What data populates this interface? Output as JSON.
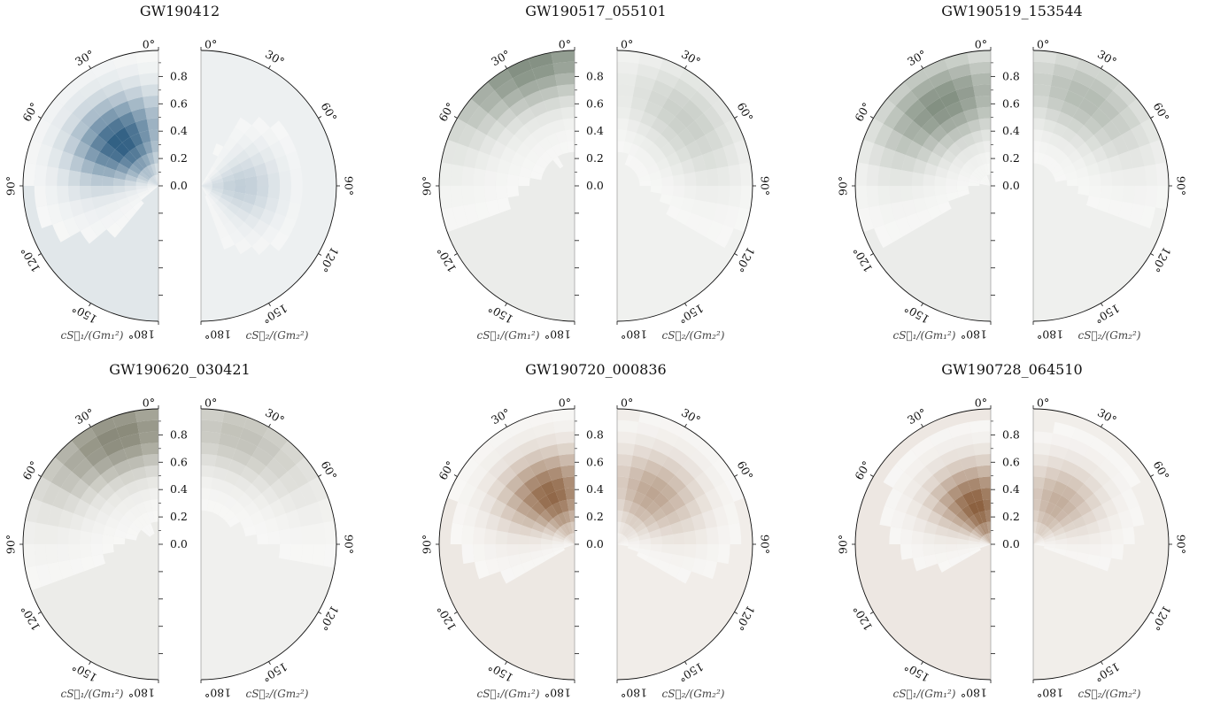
{
  "chart_data": [
    {
      "type": "heatmap",
      "title": "GW190412",
      "cmap_dark": "#2b5b80",
      "angle_ticks": [
        "0°",
        "30°",
        "60°",
        "90°",
        "120°",
        "150°",
        "180°"
      ],
      "radial_ticks": [
        "0.8",
        "0.6",
        "0.4",
        "0.2",
        "0.0"
      ],
      "left_label": "cS⃗₁/(Gm₁²)",
      "right_label": "cS⃗₂/(Gm₂²)",
      "primary_peak": {
        "magnitude": 0.42,
        "tilt_deg": 40
      },
      "secondary_peak": {
        "magnitude": 0.3,
        "tilt_deg": 90
      },
      "primary_strength": 1.0,
      "secondary_strength": 0.28
    },
    {
      "type": "heatmap",
      "title": "GW190517_055101",
      "cmap_dark": "#6b7a6a",
      "angle_ticks": [
        "0°",
        "30°",
        "60°",
        "90°",
        "120°",
        "150°",
        "180°"
      ],
      "radial_ticks": [
        "0.8",
        "0.6",
        "0.4",
        "0.2",
        "0.0"
      ],
      "left_label": "cS⃗₁/(Gm₁²)",
      "right_label": "cS⃗₂/(Gm₂²)",
      "primary_peak": {
        "magnitude": 0.95,
        "tilt_deg": 20
      },
      "secondary_peak": {
        "magnitude": 0.7,
        "tilt_deg": 45
      },
      "primary_strength": 0.85,
      "secondary_strength": 0.35
    },
    {
      "type": "heatmap",
      "title": "GW190519_153544",
      "cmap_dark": "#6b7a6a",
      "angle_ticks": [
        "0°",
        "30°",
        "60°",
        "90°",
        "120°",
        "150°",
        "180°"
      ],
      "radial_ticks": [
        "0.8",
        "0.6",
        "0.4",
        "0.2",
        "0.0"
      ],
      "left_label": "cS⃗₁/(Gm₁²)",
      "right_label": "cS⃗₂/(Gm₂²)",
      "primary_peak": {
        "magnitude": 0.7,
        "tilt_deg": 30
      },
      "secondary_peak": {
        "magnitude": 0.75,
        "tilt_deg": 30
      },
      "primary_strength": 0.85,
      "secondary_strength": 0.5
    },
    {
      "type": "heatmap",
      "title": "GW190620_030421",
      "cmap_dark": "#7a7a68",
      "angle_ticks": [
        "0°",
        "30°",
        "60°",
        "90°",
        "120°",
        "150°",
        "180°"
      ],
      "radial_ticks": [
        "0.8",
        "0.6",
        "0.4",
        "0.2",
        "0.0"
      ],
      "left_label": "cS⃗₁/(Gm₁²)",
      "right_label": "cS⃗₂/(Gm₂²)",
      "primary_peak": {
        "magnitude": 0.85,
        "tilt_deg": 20
      },
      "secondary_peak": {
        "magnitude": 0.85,
        "tilt_deg": 20
      },
      "primary_strength": 0.9,
      "secondary_strength": 0.45
    },
    {
      "type": "heatmap",
      "title": "GW190720_000836",
      "cmap_dark": "#8a5e3c",
      "angle_ticks": [
        "0°",
        "30°",
        "60°",
        "90°",
        "120°",
        "150°",
        "180°"
      ],
      "radial_ticks": [
        "0.8",
        "0.6",
        "0.4",
        "0.2",
        "0.0"
      ],
      "left_label": "cS⃗₁/(Gm₁²)",
      "right_label": "cS⃗₂/(Gm₂²)",
      "primary_peak": {
        "magnitude": 0.4,
        "tilt_deg": 25
      },
      "secondary_peak": {
        "magnitude": 0.45,
        "tilt_deg": 35
      },
      "primary_strength": 0.95,
      "secondary_strength": 0.55
    },
    {
      "type": "heatmap",
      "title": "GW190728_064510",
      "cmap_dark": "#8a5e3c",
      "angle_ticks": [
        "0°",
        "30°",
        "60°",
        "90°",
        "120°",
        "150°",
        "180°"
      ],
      "radial_ticks": [
        "0.8",
        "0.6",
        "0.4",
        "0.2",
        "0.0"
      ],
      "left_label": "cS⃗₁/(Gm₁²)",
      "right_label": "cS⃗₂/(Gm₂²)",
      "primary_peak": {
        "magnitude": 0.3,
        "tilt_deg": 20
      },
      "secondary_peak": {
        "magnitude": 0.35,
        "tilt_deg": 30
      },
      "primary_strength": 1.0,
      "secondary_strength": 0.5
    }
  ]
}
